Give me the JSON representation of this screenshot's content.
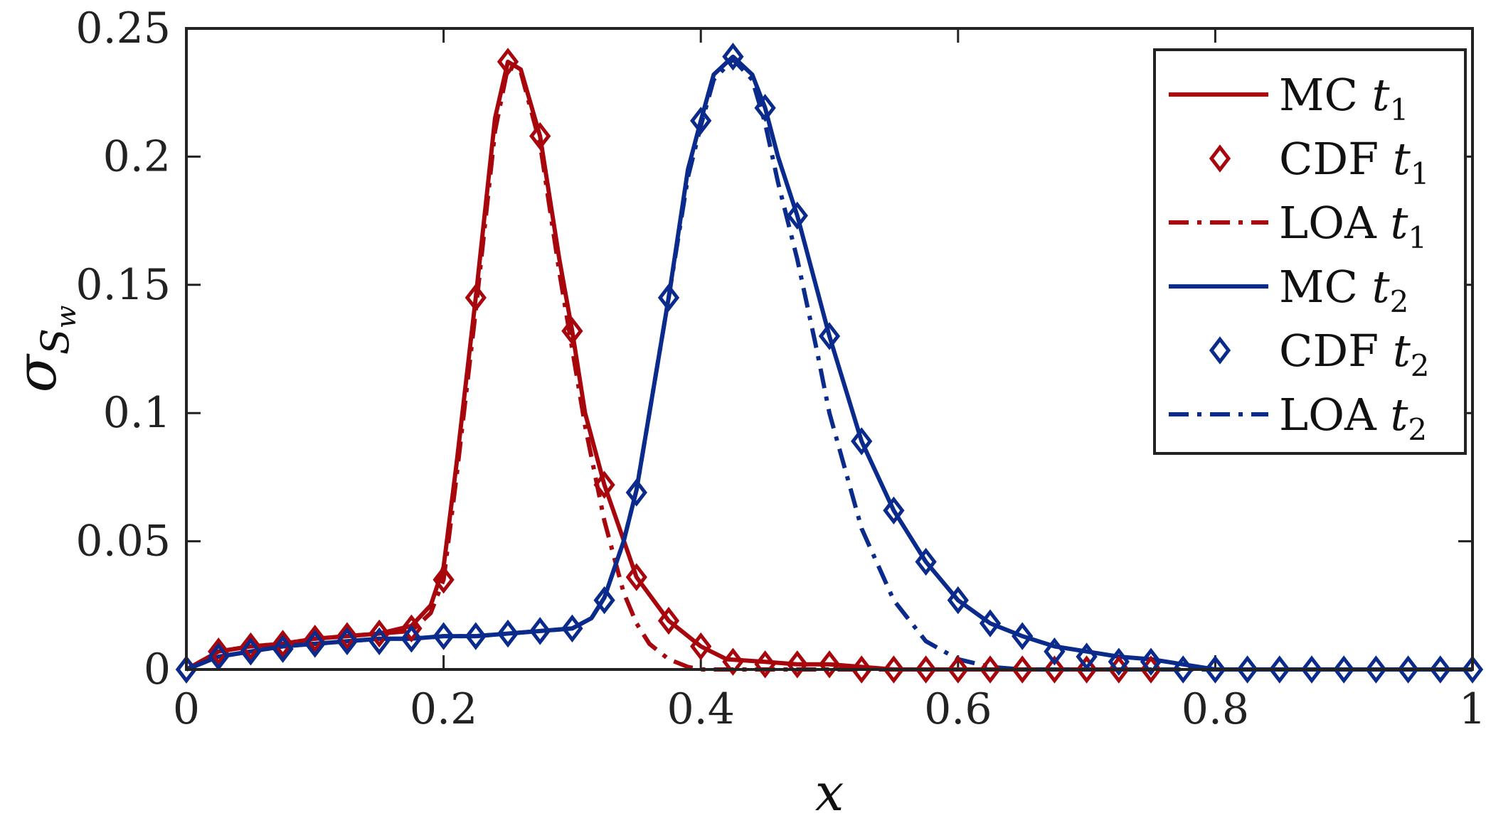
{
  "chart_data": {
    "type": "line",
    "xlabel": "x",
    "ylabel_main": "σ",
    "ylabel_sub": "S",
    "ylabel_subsub": "w",
    "xlim": [
      0,
      1
    ],
    "ylim": [
      0,
      0.25
    ],
    "x_ticks": [
      0,
      0.2,
      0.4,
      0.6,
      0.8,
      1
    ],
    "x_tick_labels": [
      "0",
      "0.2",
      "0.4",
      "0.6",
      "0.8",
      "1"
    ],
    "y_ticks": [
      0,
      0.05,
      0.1,
      0.15,
      0.2,
      0.25
    ],
    "y_tick_labels": [
      "0",
      "0.05",
      "0.1",
      "0.15",
      "0.2",
      "0.25"
    ],
    "legend_position": "top-right",
    "colors": {
      "t1": "#a6060c",
      "t2": "#0a2b8c"
    },
    "series": [
      {
        "name": "MC",
        "subscript": "1",
        "style": "solid",
        "color_key": "t1",
        "x": [
          0,
          0.025,
          0.05,
          0.075,
          0.1,
          0.125,
          0.15,
          0.175,
          0.19,
          0.2,
          0.21,
          0.225,
          0.24,
          0.25,
          0.26,
          0.275,
          0.29,
          0.3,
          0.31,
          0.325,
          0.35,
          0.375,
          0.4,
          0.42,
          0.45,
          0.475,
          0.5,
          0.55,
          0.6,
          0.65,
          0.7,
          0.75
        ],
        "y": [
          0,
          0.007,
          0.009,
          0.01,
          0.012,
          0.013,
          0.014,
          0.017,
          0.025,
          0.04,
          0.08,
          0.145,
          0.215,
          0.237,
          0.234,
          0.208,
          0.16,
          0.132,
          0.1,
          0.072,
          0.036,
          0.019,
          0.009,
          0.004,
          0.003,
          0.002,
          0.002,
          0,
          0,
          0,
          0,
          0
        ]
      },
      {
        "name": "CDF",
        "subscript": "1",
        "style": "marker",
        "color_key": "t1",
        "x": [
          0,
          0.025,
          0.05,
          0.075,
          0.1,
          0.125,
          0.15,
          0.175,
          0.2,
          0.225,
          0.25,
          0.275,
          0.3,
          0.325,
          0.35,
          0.375,
          0.4,
          0.425,
          0.45,
          0.475,
          0.5,
          0.525,
          0.55,
          0.575,
          0.6,
          0.625,
          0.65,
          0.675,
          0.7,
          0.725,
          0.75
        ],
        "y": [
          0,
          0.007,
          0.009,
          0.01,
          0.012,
          0.013,
          0.014,
          0.016,
          0.035,
          0.145,
          0.237,
          0.208,
          0.132,
          0.072,
          0.036,
          0.019,
          0.009,
          0.003,
          0.002,
          0.002,
          0.002,
          0,
          0,
          0,
          0,
          0,
          0,
          0,
          0,
          0,
          0
        ]
      },
      {
        "name": "LOA",
        "subscript": "1",
        "style": "dashdot",
        "color_key": "t1",
        "x": [
          0,
          0.025,
          0.05,
          0.075,
          0.1,
          0.125,
          0.15,
          0.175,
          0.19,
          0.2,
          0.21,
          0.225,
          0.24,
          0.25,
          0.26,
          0.275,
          0.29,
          0.3,
          0.31,
          0.325,
          0.34,
          0.35,
          0.36,
          0.375,
          0.39,
          0.4,
          0.42,
          0.45,
          0.5,
          0.55,
          0.6,
          0.65,
          0.7,
          0.75
        ],
        "y": [
          0,
          0.007,
          0.009,
          0.01,
          0.012,
          0.013,
          0.014,
          0.015,
          0.022,
          0.035,
          0.075,
          0.14,
          0.21,
          0.235,
          0.233,
          0.205,
          0.155,
          0.125,
          0.095,
          0.058,
          0.03,
          0.018,
          0.01,
          0.004,
          0.001,
          0,
          0,
          0,
          0,
          0,
          0,
          0,
          0,
          0
        ]
      },
      {
        "name": "MC",
        "subscript": "2",
        "style": "solid",
        "color_key": "t2",
        "x": [
          0,
          0.025,
          0.05,
          0.075,
          0.1,
          0.125,
          0.15,
          0.175,
          0.2,
          0.225,
          0.25,
          0.275,
          0.3,
          0.315,
          0.325,
          0.34,
          0.35,
          0.36,
          0.375,
          0.39,
          0.4,
          0.41,
          0.425,
          0.44,
          0.45,
          0.46,
          0.475,
          0.5,
          0.525,
          0.55,
          0.575,
          0.6,
          0.625,
          0.65,
          0.675,
          0.7,
          0.725,
          0.75,
          0.775,
          0.8,
          0.85,
          0.9,
          0.95,
          1
        ],
        "y": [
          0,
          0.005,
          0.007,
          0.009,
          0.01,
          0.011,
          0.012,
          0.012,
          0.013,
          0.013,
          0.014,
          0.015,
          0.016,
          0.02,
          0.028,
          0.05,
          0.07,
          0.1,
          0.145,
          0.195,
          0.214,
          0.232,
          0.239,
          0.232,
          0.219,
          0.2,
          0.177,
          0.13,
          0.089,
          0.062,
          0.042,
          0.027,
          0.018,
          0.013,
          0.009,
          0.007,
          0.005,
          0.004,
          0.002,
          0,
          0,
          0,
          0,
          0
        ]
      },
      {
        "name": "CDF",
        "subscript": "2",
        "style": "marker",
        "color_key": "t2",
        "x": [
          0,
          0.025,
          0.05,
          0.075,
          0.1,
          0.125,
          0.15,
          0.175,
          0.2,
          0.225,
          0.25,
          0.275,
          0.3,
          0.325,
          0.35,
          0.375,
          0.4,
          0.425,
          0.45,
          0.475,
          0.5,
          0.525,
          0.55,
          0.575,
          0.6,
          0.625,
          0.65,
          0.675,
          0.7,
          0.725,
          0.75,
          0.775,
          0.8,
          0.825,
          0.85,
          0.875,
          0.9,
          0.925,
          0.95,
          0.975,
          1
        ],
        "y": [
          0,
          0.005,
          0.007,
          0.008,
          0.01,
          0.011,
          0.011,
          0.012,
          0.013,
          0.013,
          0.014,
          0.015,
          0.016,
          0.027,
          0.069,
          0.145,
          0.214,
          0.239,
          0.219,
          0.177,
          0.13,
          0.089,
          0.062,
          0.042,
          0.027,
          0.018,
          0.013,
          0.007,
          0.005,
          0.003,
          0.003,
          0,
          0,
          0,
          0,
          0,
          0,
          0,
          0,
          0,
          0
        ]
      },
      {
        "name": "LOA",
        "subscript": "2",
        "style": "dashdot",
        "color_key": "t2",
        "x": [
          0,
          0.025,
          0.05,
          0.075,
          0.1,
          0.125,
          0.15,
          0.175,
          0.2,
          0.225,
          0.25,
          0.275,
          0.3,
          0.315,
          0.325,
          0.34,
          0.35,
          0.36,
          0.375,
          0.39,
          0.4,
          0.41,
          0.425,
          0.44,
          0.45,
          0.46,
          0.475,
          0.49,
          0.5,
          0.525,
          0.55,
          0.575,
          0.6,
          0.625,
          0.65,
          0.7,
          0.8,
          0.9,
          1
        ],
        "y": [
          0,
          0.005,
          0.007,
          0.009,
          0.01,
          0.011,
          0.012,
          0.012,
          0.013,
          0.013,
          0.014,
          0.015,
          0.016,
          0.02,
          0.028,
          0.05,
          0.07,
          0.1,
          0.145,
          0.192,
          0.212,
          0.23,
          0.238,
          0.23,
          0.213,
          0.19,
          0.16,
          0.125,
          0.1,
          0.055,
          0.027,
          0.011,
          0.004,
          0.001,
          0,
          0,
          0,
          0,
          0
        ]
      }
    ]
  }
}
